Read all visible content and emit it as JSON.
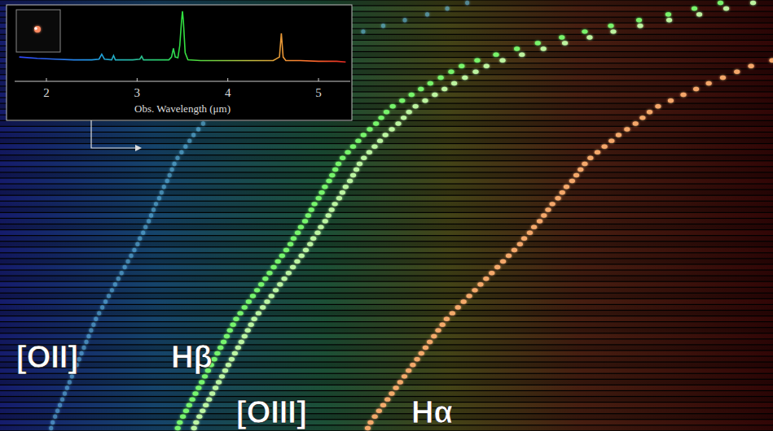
{
  "chart_data": {
    "type": "line",
    "xlabel": "Obs. Wavelength (μm)",
    "x": [
      1.7,
      1.9,
      2.1,
      2.3,
      2.5,
      2.58,
      2.61,
      2.64,
      2.72,
      2.74,
      2.76,
      2.8,
      2.95,
      3.03,
      3.05,
      3.07,
      3.2,
      3.35,
      3.38,
      3.4,
      3.42,
      3.45,
      3.47,
      3.49,
      3.5,
      3.51,
      3.53,
      3.56,
      3.7,
      3.9,
      4.1,
      4.3,
      4.5,
      4.57,
      4.59,
      4.61,
      4.64,
      4.8,
      5.0,
      5.2,
      5.3
    ],
    "values": [
      3.4,
      3.2,
      3.1,
      3.0,
      3.0,
      3.1,
      3.8,
      3.1,
      3.0,
      3.6,
      3.0,
      3.0,
      3.0,
      3.1,
      3.5,
      3.0,
      3.0,
      3.0,
      3.4,
      4.6,
      3.4,
      3.3,
      5.0,
      8.5,
      9.8,
      8.5,
      4.0,
      3.0,
      2.9,
      2.9,
      2.9,
      2.9,
      2.9,
      3.4,
      6.7,
      3.4,
      2.9,
      2.9,
      2.8,
      2.8,
      2.7
    ],
    "xlim": [
      1.65,
      5.35
    ],
    "xticks": [
      2,
      3,
      4,
      5
    ],
    "ylim": [
      0,
      10
    ],
    "tick_labels": "x"
  },
  "spectra_stack": {
    "xlim": [
      1.7,
      5.3
    ],
    "lines": [
      {
        "label": "[OII]",
        "rest_um": 0.3727,
        "color": "#6fd0ff"
      },
      {
        "label": "Hβ",
        "rest_um": 0.4861,
        "color": "#7cff70"
      },
      {
        "label": "[OIII]",
        "rest_um": 0.5007,
        "color": "#c4ffa8"
      },
      {
        "label": "Hα",
        "rest_um": 0.6563,
        "color": "#ffb070"
      }
    ],
    "redshifts": [
      9.4,
      9.15,
      8.9,
      8.62,
      8.35,
      8.1,
      7.88,
      7.65,
      7.45,
      7.25,
      7.07,
      6.92,
      6.82,
      6.72,
      6.62,
      6.53,
      6.44,
      6.35,
      6.26,
      6.2,
      6.15,
      6.1,
      6.04,
      5.98,
      5.93,
      5.88,
      5.83,
      5.78,
      5.74,
      5.71,
      5.68,
      5.65,
      5.61,
      5.58,
      5.55,
      5.51,
      5.48,
      5.45,
      5.42,
      5.38,
      5.35,
      5.31,
      5.28,
      5.24,
      5.2,
      5.16,
      5.12,
      5.08,
      5.04,
      5.0,
      4.96,
      4.92,
      4.88,
      4.84,
      4.8,
      4.76,
      4.73,
      4.7,
      4.67,
      4.64,
      4.61,
      4.58,
      4.55,
      4.52,
      4.49,
      4.46,
      4.43,
      4.4,
      4.37,
      4.34,
      4.31,
      4.28,
      4.25,
      4.22,
      4.2
    ]
  }
}
